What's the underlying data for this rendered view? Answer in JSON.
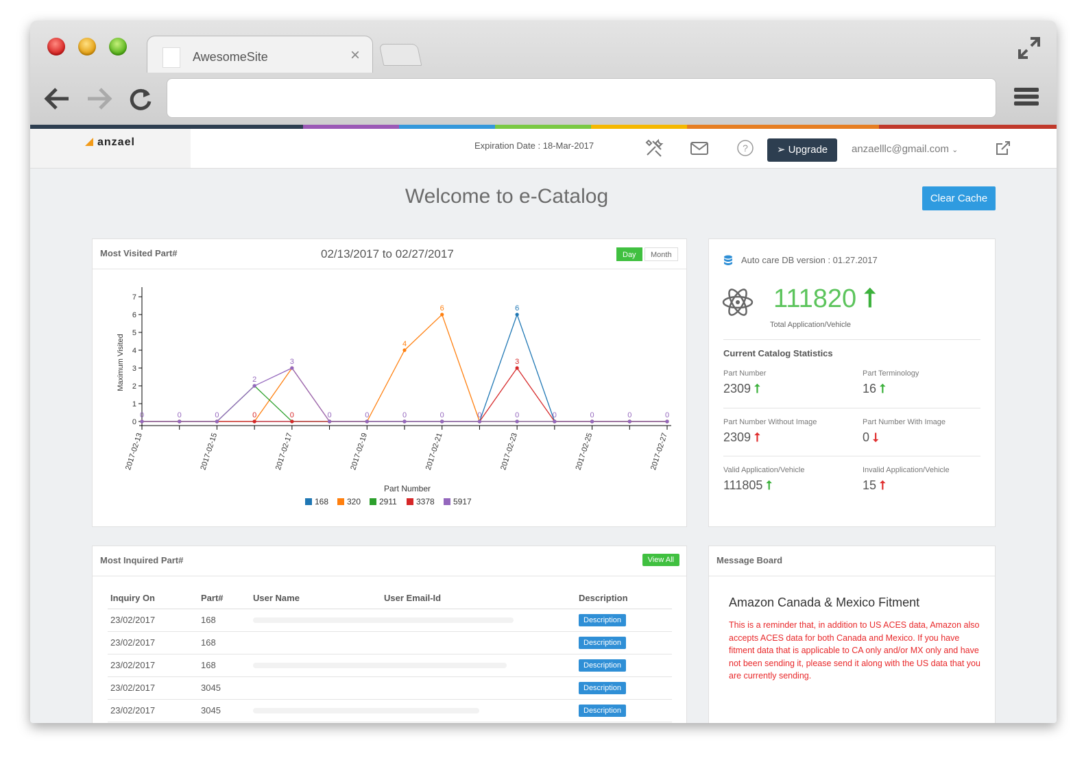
{
  "browser": {
    "tab_title": "AwesomeSite",
    "address": ""
  },
  "accent_colors": [
    "#2d3e50",
    "#9b59b6",
    "#3498db",
    "#7ac943",
    "#f5b800",
    "#e67e22",
    "#c0392b"
  ],
  "header": {
    "logo_text": "anzael",
    "expiry_text": "Expiration Date : 18-Mar-2017",
    "upgrade_label": "Upgrade",
    "user_email": "anzaelllc@gmail.com"
  },
  "page": {
    "title": "Welcome to e-Catalog",
    "clear_cache_label": "Clear Cache"
  },
  "visited_card": {
    "title": "Most Visited Part#",
    "date_range": "02/13/2017 to 02/27/2017",
    "toggle_day": "Day",
    "toggle_month": "Month"
  },
  "chart_data": {
    "type": "line",
    "xlabel": "Part Number",
    "ylabel": "Maximum Visited",
    "ylim": [
      0,
      7
    ],
    "yticks": [
      "0",
      "1",
      "2",
      "3",
      "4",
      "5",
      "6",
      "7"
    ],
    "x": [
      "2017-02-13",
      "2017-02-14",
      "2017-02-15",
      "2017-02-16",
      "2017-02-17",
      "2017-02-18",
      "2017-02-19",
      "2017-02-20",
      "2017-02-21",
      "2017-02-22",
      "2017-02-23",
      "2017-02-24",
      "2017-02-25",
      "2017-02-26",
      "2017-02-27"
    ],
    "xtick_labels": [
      "2017-02-13",
      "2017-02-15",
      "2017-02-17",
      "2017-02-19",
      "2017-02-21",
      "2017-02-23",
      "2017-02-25",
      "2017-02-27"
    ],
    "legend": "bottom",
    "series": [
      {
        "name": "168",
        "color": "#1f77b4",
        "values": [
          0,
          0,
          0,
          0,
          0,
          0,
          0,
          0,
          0,
          0,
          6,
          0,
          0,
          0,
          0
        ]
      },
      {
        "name": "320",
        "color": "#ff7f0e",
        "values": [
          0,
          0,
          0,
          0,
          3,
          0,
          0,
          4,
          6,
          0,
          0,
          0,
          0,
          0,
          0
        ]
      },
      {
        "name": "2911",
        "color": "#2ca02c",
        "values": [
          0,
          0,
          0,
          2,
          0,
          0,
          0,
          0,
          0,
          0,
          0,
          0,
          0,
          0,
          0
        ]
      },
      {
        "name": "3378",
        "color": "#d62728",
        "values": [
          0,
          0,
          0,
          0,
          0,
          0,
          0,
          0,
          0,
          0,
          3,
          0,
          0,
          0,
          0
        ]
      },
      {
        "name": "5917",
        "color": "#9467bd",
        "values": [
          0,
          0,
          0,
          2,
          3,
          0,
          0,
          0,
          0,
          0,
          0,
          0,
          0,
          0,
          0
        ]
      }
    ],
    "point_labels": [
      {
        "x": "2017-02-13",
        "text": "0",
        "color": "#9467bd"
      },
      {
        "x": "2017-02-14",
        "text": "0",
        "color": "#9467bd"
      },
      {
        "x": "2017-02-15",
        "text": "0",
        "color": "#9467bd"
      },
      {
        "x": "2017-02-16",
        "text": "0",
        "color": "#d62728"
      },
      {
        "x": "2017-02-16",
        "text": "2",
        "color": "#9467bd",
        "value": 2
      },
      {
        "x": "2017-02-17",
        "text": "0",
        "color": "#d62728"
      },
      {
        "x": "2017-02-17",
        "text": "3",
        "color": "#9467bd",
        "value": 3
      },
      {
        "x": "2017-02-18",
        "text": "0",
        "color": "#9467bd"
      },
      {
        "x": "2017-02-19",
        "text": "0",
        "color": "#9467bd"
      },
      {
        "x": "2017-02-20",
        "text": "4",
        "color": "#ff7f0e",
        "value": 4
      },
      {
        "x": "2017-02-20",
        "text": "0",
        "color": "#9467bd"
      },
      {
        "x": "2017-02-21",
        "text": "6",
        "color": "#ff7f0e",
        "value": 6
      },
      {
        "x": "2017-02-21",
        "text": "0",
        "color": "#9467bd"
      },
      {
        "x": "2017-02-22",
        "text": "0",
        "color": "#9467bd"
      },
      {
        "x": "2017-02-23",
        "text": "6",
        "color": "#1f77b4",
        "value": 6
      },
      {
        "x": "2017-02-23",
        "text": "3",
        "color": "#d62728",
        "value": 3
      },
      {
        "x": "2017-02-23",
        "text": "0",
        "color": "#9467bd"
      },
      {
        "x": "2017-02-24",
        "text": "0",
        "color": "#9467bd"
      },
      {
        "x": "2017-02-25",
        "text": "0",
        "color": "#9467bd"
      },
      {
        "x": "2017-02-26",
        "text": "0",
        "color": "#9467bd"
      },
      {
        "x": "2017-02-27",
        "text": "0",
        "color": "#9467bd"
      }
    ]
  },
  "stats_card": {
    "db_version": "Auto care DB version : 01.27.2017",
    "total_value": "111820",
    "total_label": "Total Application/Vehicle",
    "section_title": "Current Catalog Statistics",
    "items": [
      {
        "label": "Part Number",
        "value": "2309",
        "trend": "up-green"
      },
      {
        "label": "Part Terminology",
        "value": "16",
        "trend": "up-green"
      },
      {
        "label": "Part Number Without Image",
        "value": "2309",
        "trend": "up-red"
      },
      {
        "label": "Part Number With Image",
        "value": "0",
        "trend": "down-red"
      },
      {
        "label": "Valid Application/Vehicle",
        "value": "111805",
        "trend": "up-green"
      },
      {
        "label": "Invalid Application/Vehicle",
        "value": "15",
        "trend": "up-red"
      }
    ]
  },
  "inquired_card": {
    "title": "Most Inquired Part#",
    "view_all_label": "View All",
    "columns": [
      "Inquiry On",
      "Part#",
      "User Name",
      "User Email-Id",
      "Description"
    ],
    "rows": [
      {
        "date": "23/02/2017",
        "part": "168",
        "button": "Description"
      },
      {
        "date": "23/02/2017",
        "part": "168",
        "button": "Description"
      },
      {
        "date": "23/02/2017",
        "part": "168",
        "button": "Description"
      },
      {
        "date": "23/02/2017",
        "part": "3045",
        "button": "Description"
      },
      {
        "date": "23/02/2017",
        "part": "3045",
        "button": "Description"
      }
    ]
  },
  "message_card": {
    "title": "Message Board",
    "heading": "Amazon Canada & Mexico Fitment",
    "body": "This is a reminder that, in addition to US ACES data, Amazon also accepts ACES data for both Canada and Mexico. If you have fitment data that is applicable to CA only and/or MX only and have not been sending it, please send it along with the US data that you are currently sending."
  }
}
